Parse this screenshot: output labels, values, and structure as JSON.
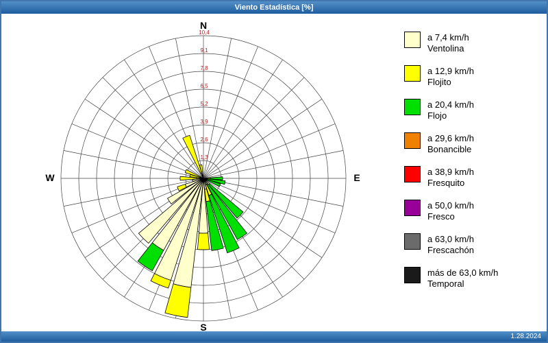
{
  "window": {
    "title": "Viento Estadística [%]",
    "footer_date": "1.28.2024"
  },
  "colors": {
    "border": "#4076AD",
    "titlebar": "#1D5C9E",
    "titlebar-light": "#5390C8"
  },
  "chart_data": {
    "type": "windrose",
    "title": "Viento Estadística [%]",
    "units": "%",
    "compass": {
      "n": "N",
      "e": "E",
      "s": "S",
      "w": "W"
    },
    "ring_count": 8,
    "ring_max": 10.4,
    "ring_step": 1.3,
    "tick_labels": [
      "1,3",
      "2,6",
      "3,9",
      "5,2",
      "6,5",
      "7,8",
      "9,1",
      "10,4"
    ],
    "grid": true,
    "legend_position": "right",
    "directions": [
      "N",
      "NbE",
      "NNE",
      "NEbN",
      "NE",
      "NEbE",
      "ENE",
      "EbN",
      "E",
      "EbS",
      "ESE",
      "SEbE",
      "SE",
      "SEbS",
      "SSE",
      "SbE",
      "S",
      "SbW",
      "SSW",
      "SWbS",
      "SW",
      "SWbW",
      "WSW",
      "WbS",
      "W",
      "WbN",
      "WNW",
      "NWbW",
      "NW",
      "NWbN",
      "NNW",
      "NbW"
    ],
    "series": [
      {
        "name": "Ventolina",
        "speed_label": "a 7,4 km/h",
        "color": "#FFFFCC",
        "values": [
          0,
          0,
          0,
          0,
          0,
          0,
          0,
          0,
          0.3,
          0.2,
          0.2,
          0.3,
          0.6,
          0.5,
          0.5,
          0.8,
          4.0,
          8.0,
          7.8,
          6.0,
          6.2,
          3.0,
          1.4,
          0.8,
          0.5,
          0.2,
          0.2,
          0,
          0,
          0,
          0.4,
          0.2
        ]
      },
      {
        "name": "Flojito",
        "speed_label": "a 12,9 km/h",
        "color": "#FFFF00",
        "values": [
          0,
          0,
          0,
          0,
          0,
          0,
          0,
          0,
          0.2,
          0,
          0,
          0,
          0,
          0,
          0.8,
          0.9,
          1.2,
          2.2,
          0.6,
          0,
          0,
          0,
          0.6,
          0,
          1.2,
          0.8,
          1.2,
          0,
          0,
          0,
          2.9,
          0.8
        ]
      },
      {
        "name": "Flojo",
        "speed_label": "a 20,4 km/h",
        "color": "#00E000",
        "values": [
          0,
          0,
          0,
          0,
          0,
          0,
          0,
          0,
          0.9,
          1.4,
          1.1,
          0,
          3.2,
          4.6,
          4.4,
          3.6,
          0,
          0,
          0,
          1.7,
          0,
          0,
          0,
          0,
          0,
          0,
          0,
          0,
          0,
          0,
          0,
          0
        ]
      },
      {
        "name": "Bonancible",
        "speed_label": "a 29,6 km/h",
        "color": "#F08000",
        "values": [
          0,
          0,
          0,
          0,
          0,
          0,
          0,
          0,
          0,
          0,
          0,
          0,
          0,
          0,
          0,
          0,
          0,
          0,
          0,
          0,
          0,
          0,
          0,
          0,
          0,
          0,
          0,
          0,
          0,
          0,
          0,
          0
        ]
      },
      {
        "name": "Fresquito",
        "speed_label": "a 38,9 km/h",
        "color": "#FF0000",
        "values": [
          0,
          0,
          0,
          0,
          0,
          0,
          0,
          0,
          0,
          0,
          0,
          0,
          0,
          0,
          0,
          0,
          0,
          0,
          0,
          0,
          0,
          0,
          0,
          0,
          0,
          0,
          0,
          0,
          0,
          0,
          0,
          0
        ]
      },
      {
        "name": "Fresco",
        "speed_label": "a 50,0 km/h",
        "color": "#990099",
        "values": [
          0,
          0,
          0,
          0,
          0,
          0,
          0,
          0,
          0,
          0,
          0,
          0,
          0,
          0,
          0,
          0,
          0,
          0,
          0,
          0,
          0,
          0,
          0,
          0,
          0,
          0,
          0,
          0,
          0,
          0,
          0,
          0
        ]
      },
      {
        "name": "Frescachón",
        "speed_label": "a 63,0 km/h",
        "color": "#6B6B6B",
        "values": [
          0,
          0,
          0,
          0,
          0,
          0,
          0,
          0,
          0,
          0,
          0,
          0,
          0,
          0,
          0,
          0,
          0,
          0,
          0,
          0,
          0,
          0,
          0,
          0,
          0,
          0,
          0,
          0,
          0,
          0,
          0,
          0
        ]
      },
      {
        "name": "Temporal",
        "speed_label": "más de 63,0 km/h",
        "color": "#1A1A1A",
        "values": [
          0,
          0,
          0,
          0,
          0,
          0,
          0,
          0,
          0,
          0,
          0,
          0,
          0,
          0,
          0,
          0,
          0,
          0,
          0,
          0,
          0,
          0,
          0,
          0,
          0,
          0,
          0,
          0,
          0,
          0,
          0,
          0
        ]
      }
    ]
  }
}
